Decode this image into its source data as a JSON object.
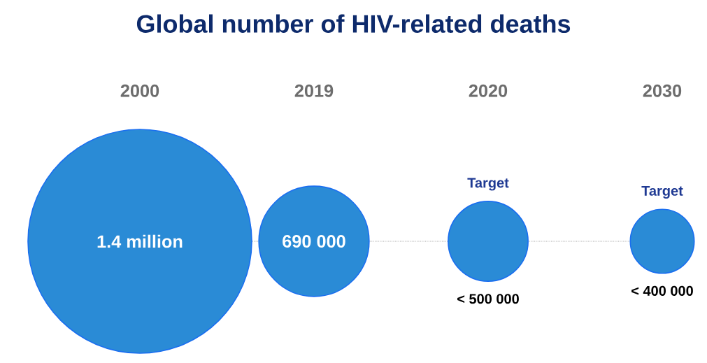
{
  "chart_data": {
    "type": "other",
    "title": "Global number of HIV-related deaths",
    "categories": [
      "2000",
      "2019",
      "2020",
      "2030"
    ],
    "values": [
      1400000,
      690000,
      500000,
      400000
    ],
    "value_labels": [
      "1.4 million",
      "690 000",
      "< 500 000",
      "< 400 000"
    ],
    "color": "#2a8bd6",
    "annotations": [
      "Target",
      "Target"
    ]
  }
}
